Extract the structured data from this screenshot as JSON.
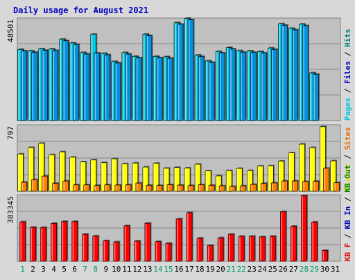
{
  "title": "Daily usage for August 2021",
  "chart_data": {
    "type": "bar",
    "title": "Daily usage for August 2021",
    "categories": [
      "1",
      "2",
      "3",
      "4",
      "5",
      "6",
      "7",
      "8",
      "9",
      "10",
      "11",
      "12",
      "13",
      "14",
      "15",
      "16",
      "17",
      "18",
      "19",
      "20",
      "21",
      "22",
      "23",
      "24",
      "25",
      "26",
      "27",
      "28",
      "29",
      "30",
      "31"
    ],
    "weekend_days": [
      "1",
      "7",
      "8",
      "14",
      "15",
      "21",
      "22",
      "28",
      "29"
    ],
    "panels": [
      {
        "name": "pages-files-hits",
        "max_label": "48501",
        "ymax": 48501,
        "legend": [
          {
            "text": "Pages",
            "color": "#00c8e0"
          },
          {
            "text": "Files",
            "color": "#0000c0"
          },
          {
            "text": "Hits",
            "color": "#008080"
          }
        ],
        "series": [
          {
            "name": "Hits",
            "color": "#00c8e0",
            "values": [
              34100,
              33400,
              34400,
              34300,
              39000,
              37200,
              32600,
              41400,
              32200,
              28300,
              32600,
              30800,
              41400,
              30800,
              30600,
              46900,
              49000,
              31400,
              28600,
              33100,
              35000,
              33500,
              33400,
              33100,
              34800,
              46400,
              44200,
              46200,
              22900,
              null,
              null
            ]
          },
          {
            "name": "Files",
            "color": "#0090e0",
            "values": [
              33400,
              32700,
              33700,
              33600,
              38300,
              36500,
              31900,
              32400,
              31500,
              27600,
              31900,
              30100,
              40700,
              30100,
              29900,
              46200,
              48300,
              30700,
              27900,
              32400,
              34300,
              32800,
              32700,
              32400,
              34100,
              45700,
              43500,
              45500,
              22200,
              null,
              null
            ]
          }
        ]
      },
      {
        "name": "visits-sites",
        "max_label": "797",
        "ymax": 797,
        "legend": [
          {
            "text": "Visits",
            "color": "#e0e000"
          },
          {
            "text": "Sites",
            "color": "#e07000"
          }
        ],
        "series": [
          {
            "name": "Visits",
            "color": "#ffff00",
            "values": [
              455,
              535,
              586,
              447,
              482,
              416,
              358,
              383,
              349,
              397,
              336,
              345,
              296,
              342,
              281,
              291,
              284,
              330,
              249,
              187,
              252,
              279,
              253,
              308,
              312,
              369,
              470,
              576,
              534,
              790,
              372
            ]
          },
          {
            "name": "Sites",
            "color": "#ff8000",
            "values": [
              110,
              142,
              185,
              96,
              125,
              78,
              78,
              70,
              78,
              76,
              78,
              100,
              72,
              70,
              80,
              75,
              69,
              80,
              72,
              66,
              58,
              66,
              83,
              96,
              102,
              126,
              126,
              118,
              122,
              281,
              105
            ]
          }
        ]
      },
      {
        "name": "kb",
        "max_label": "383345",
        "ymax": 383345,
        "legend": [
          {
            "text": "KB F",
            "color": "#e00000"
          },
          {
            "text": "KB In",
            "color": "#0000c0"
          },
          {
            "text": "KB Out",
            "color": "#008000"
          }
        ],
        "series": [
          {
            "name": "KB F",
            "color": "#ff0000",
            "values": [
              232000,
              200000,
              199000,
              223000,
              234000,
              234000,
              159000,
              149000,
              121000,
              114000,
              209000,
              119000,
              224000,
              116000,
              106000,
              249000,
              286000,
              136000,
              93000,
              138000,
              159000,
              147000,
              147000,
              144000,
              147000,
              292000,
              206000,
              386000,
              231000,
              64000,
              null
            ]
          }
        ]
      }
    ]
  }
}
